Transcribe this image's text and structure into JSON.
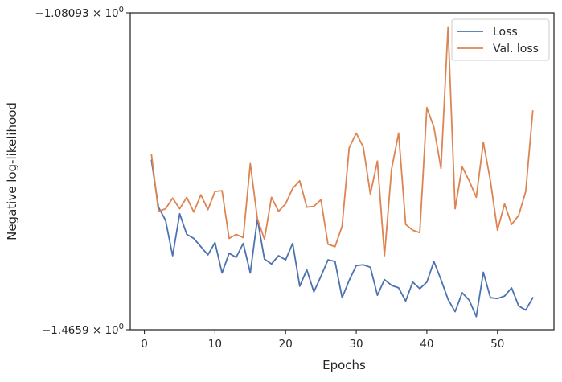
{
  "chart_data": {
    "type": "line",
    "xlabel": "Epochs",
    "ylabel": "Negative log-likelihood",
    "xlim": [
      -2,
      58
    ],
    "ylim": [
      -1.4659,
      -1.08093
    ],
    "y_scale": "symlog",
    "y_tick_labels": [
      {
        "value": -1.08093,
        "mantissa": "−1.08093",
        "base": "10",
        "exp": "0"
      },
      {
        "value": -1.4659,
        "mantissa": "−1.4659",
        "base": "10",
        "exp": "0"
      }
    ],
    "x_ticks": [
      0,
      10,
      20,
      30,
      40,
      50
    ],
    "x_tick_labels": [
      "0",
      "10",
      "20",
      "30",
      "40",
      "50"
    ],
    "legend_position": "top-right",
    "grid": false,
    "x": [
      1,
      2,
      3,
      4,
      5,
      6,
      7,
      8,
      9,
      10,
      11,
      12,
      13,
      14,
      15,
      16,
      17,
      18,
      19,
      20,
      21,
      22,
      23,
      24,
      25,
      26,
      27,
      28,
      29,
      30,
      31,
      32,
      33,
      34,
      35,
      36,
      37,
      38,
      39,
      40,
      41,
      42,
      43,
      44,
      45,
      46,
      47,
      48,
      49,
      50,
      51,
      52,
      53,
      54,
      55
    ],
    "series": [
      {
        "name": "Loss",
        "color": "#4c72b0",
        "values": [
          -1.26,
          -1.317,
          -1.333,
          -1.376,
          -1.325,
          -1.35,
          -1.355,
          -1.365,
          -1.375,
          -1.36,
          -1.397,
          -1.373,
          -1.378,
          -1.361,
          -1.397,
          -1.331,
          -1.38,
          -1.386,
          -1.376,
          -1.381,
          -1.361,
          -1.413,
          -1.393,
          -1.42,
          -1.401,
          -1.381,
          -1.383,
          -1.427,
          -1.406,
          -1.388,
          -1.387,
          -1.39,
          -1.424,
          -1.405,
          -1.412,
          -1.415,
          -1.431,
          -1.408,
          -1.416,
          -1.408,
          -1.383,
          -1.405,
          -1.429,
          -1.444,
          -1.421,
          -1.43,
          -1.45,
          -1.396,
          -1.427,
          -1.428,
          -1.425,
          -1.415,
          -1.437,
          -1.442,
          -1.427
        ]
      },
      {
        "name": "Val. loss",
        "color": "#dd8452",
        "values": [
          -1.253,
          -1.322,
          -1.319,
          -1.306,
          -1.319,
          -1.305,
          -1.323,
          -1.302,
          -1.32,
          -1.298,
          -1.297,
          -1.355,
          -1.35,
          -1.354,
          -1.264,
          -1.331,
          -1.356,
          -1.305,
          -1.322,
          -1.313,
          -1.294,
          -1.285,
          -1.317,
          -1.316,
          -1.308,
          -1.362,
          -1.365,
          -1.34,
          -1.245,
          -1.227,
          -1.244,
          -1.301,
          -1.261,
          -1.376,
          -1.271,
          -1.227,
          -1.338,
          -1.345,
          -1.348,
          -1.196,
          -1.22,
          -1.27,
          -1.098,
          -1.319,
          -1.268,
          -1.285,
          -1.305,
          -1.238,
          -1.285,
          -1.345,
          -1.313,
          -1.338,
          -1.327,
          -1.298,
          -1.2
        ]
      }
    ]
  }
}
